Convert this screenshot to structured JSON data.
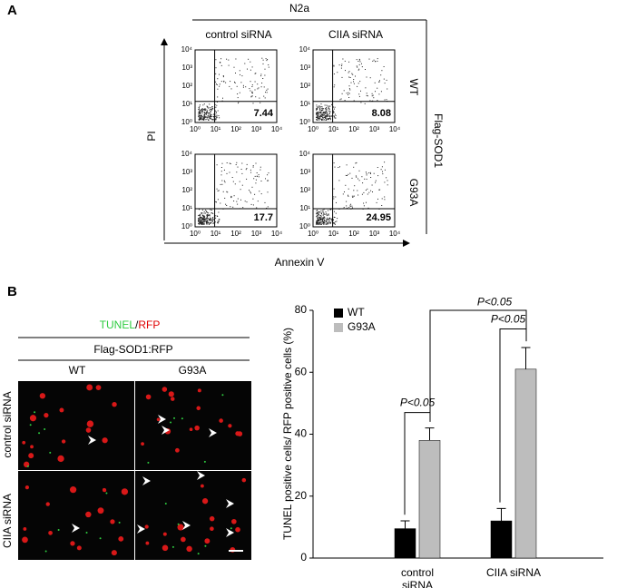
{
  "panel_a": {
    "label": "A",
    "cell_line": "N2a",
    "columns": [
      "control siRNA",
      "CIIA siRNA"
    ],
    "rows": [
      "WT",
      "G93A"
    ],
    "row_group": "Flag-SOD1",
    "y_axis": "PI",
    "x_axis": "Annexin V",
    "axis_ticks": [
      "10⁰",
      "10¹",
      "10²",
      "10³",
      "10⁴"
    ],
    "quadrant_values": [
      [
        7.44,
        8.08
      ],
      [
        17.7,
        24.95
      ]
    ]
  },
  "panel_b": {
    "label": "B",
    "stain_green": "TUNEL",
    "stain_sep": "/",
    "stain_red": "RFP",
    "construct": "Flag-SOD1:RFP",
    "columns": [
      "WT",
      "G93A"
    ],
    "rows": [
      "control siRNA",
      "CIIA siRNA"
    ]
  },
  "chart_data": {
    "type": "bar",
    "y_label": "TUNEL positive  cells/ RFP positive cells (%)",
    "categories": [
      "control siRNA",
      "CIIA siRNA"
    ],
    "series": [
      {
        "name": "WT",
        "color": "#000000",
        "values": [
          9.5,
          12
        ],
        "errors": [
          2.5,
          4
        ]
      },
      {
        "name": "G93A",
        "color": "#bdbdbd",
        "values": [
          38,
          61
        ],
        "errors": [
          4,
          7
        ]
      }
    ],
    "ylim": [
      0,
      80
    ],
    "yticks": [
      0,
      20,
      40,
      60,
      80
    ],
    "annotations": [
      "P<0.05",
      "P<0.05",
      "P<0.05"
    ]
  }
}
